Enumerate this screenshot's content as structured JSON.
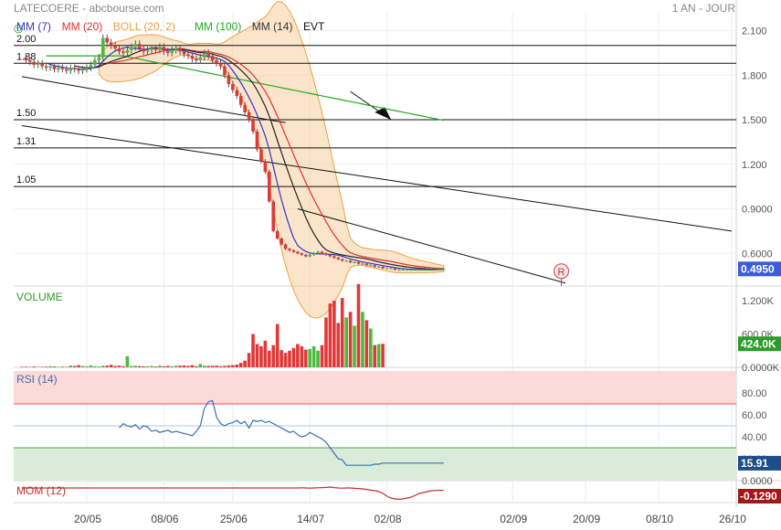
{
  "header": {
    "title": "LATECOERE - abcbourse.com",
    "period": "1 AN - JOUR"
  },
  "legend": [
    {
      "label": "MM (7)",
      "color": "#3333cc"
    },
    {
      "label": "MM (20)",
      "color": "#e03030"
    },
    {
      "label": "BOLL (20, 2)",
      "color": "#f0a040"
    },
    {
      "label": "MM (100)",
      "color": "#22aa22"
    },
    {
      "label": "MM (14)",
      "color": "#333333"
    },
    {
      "label": "EVT",
      "color": "#111111"
    }
  ],
  "colors": {
    "up": "#4cba3c",
    "down": "#e03838",
    "ma7": "#3333cc",
    "ma20": "#e03030",
    "ma100": "#22aa22",
    "ma14": "#222222",
    "boll": "#f7c58a",
    "rsi": "#3a6fb0",
    "mom": "#c03030"
  },
  "chart_data": [
    {
      "panel": "price",
      "type": "candlestick",
      "ylim": [
        0.38,
        2.22
      ],
      "y_ticks": [
        "2.100",
        "1.800",
        "1.500",
        "1.200",
        "0.9000",
        "0.6000"
      ],
      "y_tick_values": [
        2.1,
        1.8,
        1.5,
        1.2,
        0.9,
        0.6
      ],
      "x_ticks": [
        "20/05",
        "08/06",
        "25/06",
        "14/07",
        "02/08",
        "02/09",
        "20/09",
        "08/10",
        "26/10"
      ],
      "x_tick_days": [
        0,
        19,
        36,
        55,
        74,
        105,
        123,
        141,
        159
      ],
      "days": [
        -16,
        -15,
        -14,
        -13,
        -12,
        -11,
        -10,
        -9,
        -8,
        -7,
        -6,
        -5,
        -4,
        -3,
        -2,
        -1,
        0,
        1,
        2,
        3,
        4,
        5,
        6,
        7,
        8,
        9,
        10,
        11,
        12,
        13,
        14,
        15,
        16,
        17,
        18,
        19,
        20,
        21,
        22,
        23,
        24,
        25,
        26,
        27,
        28,
        29,
        30,
        31,
        32,
        33,
        34,
        35,
        36,
        37,
        38,
        39,
        40,
        41,
        42,
        43,
        44,
        45,
        46,
        47,
        48,
        49,
        50,
        51,
        52,
        53,
        54,
        55,
        56,
        57,
        58,
        59,
        60,
        61,
        62,
        63,
        64,
        65,
        66,
        67,
        68,
        69,
        70,
        71,
        72,
        73,
        74,
        75,
        76,
        77,
        78,
        79,
        80,
        81,
        82,
        83,
        84,
        85,
        86,
        87,
        88
      ],
      "close": [
        1.92,
        1.9,
        1.89,
        1.87,
        1.88,
        1.86,
        1.85,
        1.86,
        1.84,
        1.85,
        1.84,
        1.83,
        1.85,
        1.84,
        1.83,
        1.84,
        1.85,
        1.87,
        1.9,
        1.92,
        2.05,
        2.02,
        2.0,
        1.98,
        1.96,
        1.95,
        1.97,
        1.99,
        2.01,
        1.98,
        1.96,
        1.97,
        1.98,
        1.97,
        1.99,
        1.96,
        1.95,
        1.97,
        1.98,
        1.96,
        1.94,
        1.93,
        1.91,
        1.9,
        1.92,
        1.95,
        1.93,
        1.9,
        1.88,
        1.86,
        1.8,
        1.74,
        1.7,
        1.66,
        1.6,
        1.55,
        1.5,
        1.42,
        1.3,
        1.22,
        1.15,
        0.95,
        0.75,
        0.7,
        0.66,
        0.63,
        0.62,
        0.61,
        0.6,
        0.59,
        0.58,
        0.59,
        0.6,
        0.61,
        0.6,
        0.59,
        0.58,
        0.57,
        0.56,
        0.55,
        0.55,
        0.54,
        0.54,
        0.53,
        0.53,
        0.52,
        0.52,
        0.51,
        0.51,
        0.5,
        0.5,
        0.5,
        0.49,
        0.49,
        0.49,
        0.49,
        0.49,
        0.49,
        0.49,
        0.49,
        0.49,
        0.49,
        0.49,
        0.495,
        0.495
      ],
      "last_value": "0.4950",
      "levels": [
        {
          "value": 2.0,
          "label": "2.00"
        },
        {
          "value": 1.88,
          "label": "1.88"
        },
        {
          "value": 1.5,
          "label": "1.50"
        },
        {
          "value": 1.31,
          "label": "1.31"
        },
        {
          "value": 1.05,
          "label": "1.05"
        }
      ],
      "event_marker": "R"
    },
    {
      "panel": "volume",
      "type": "bar",
      "title": "VOLUME",
      "y_ticks": [
        "1.200K",
        "600.0K",
        "0.0000K"
      ],
      "y_tick_values": [
        1200,
        600,
        0
      ],
      "values": [
        10,
        12,
        8,
        15,
        10,
        9,
        12,
        20,
        15,
        10,
        12,
        8,
        30,
        25,
        40,
        22,
        18,
        35,
        20,
        15,
        28,
        30,
        45,
        25,
        30,
        20,
        200,
        25,
        30,
        22,
        18,
        20,
        26,
        15,
        30,
        18,
        25,
        20,
        28,
        30,
        35,
        26,
        40,
        20,
        60,
        30,
        25,
        28,
        30,
        22,
        26,
        35,
        40,
        50,
        80,
        120,
        260,
        600,
        420,
        380,
        480,
        300,
        400,
        780,
        310,
        260,
        300,
        350,
        420,
        380,
        320,
        330,
        380,
        300,
        400,
        900,
        1150,
        1200,
        800,
        1250,
        900,
        1000,
        750,
        1500,
        1000,
        850,
        700,
        400,
        420,
        424
      ],
      "last_value": "424.0K"
    },
    {
      "panel": "rsi",
      "type": "line",
      "title": "RSI (14)",
      "y_ticks": [
        "80.00",
        "60.00",
        "40.00",
        "20.00",
        "0.0000"
      ],
      "y_tick_values": [
        80,
        60,
        40,
        20,
        0
      ],
      "values": [
        48,
        52,
        50,
        49,
        51,
        47,
        50,
        49,
        45,
        46,
        44,
        45,
        46,
        44,
        45,
        44,
        43,
        42,
        41,
        45,
        50,
        66,
        72,
        73,
        58,
        52,
        50,
        52,
        53,
        55,
        52,
        54,
        48,
        55,
        54,
        55,
        53,
        54,
        52,
        50,
        48,
        46,
        44,
        45,
        42,
        40,
        41,
        44,
        42,
        40,
        38,
        35,
        30,
        25,
        20,
        19,
        14,
        14,
        14,
        14,
        14,
        14,
        14,
        15,
        15,
        16,
        16,
        16,
        16,
        16,
        16,
        16,
        16,
        16,
        16,
        16,
        16,
        16,
        16,
        16,
        15.91
      ],
      "last_value": "15.91"
    },
    {
      "panel": "momentum",
      "type": "line",
      "title": "MOM (12)",
      "values": [
        0,
        0.01,
        0,
        -0.01,
        0,
        0.01,
        0.02,
        0.03,
        0.05,
        0.02,
        0,
        -0.01,
        0,
        0,
        -0.02,
        -0.03,
        -0.05,
        -0.08,
        -0.12,
        -0.15,
        -0.2,
        -0.3,
        -0.45,
        -0.55,
        -0.6,
        -0.62,
        -0.6,
        -0.55,
        -0.5,
        -0.4,
        -0.3,
        -0.25,
        -0.2,
        -0.15,
        -0.14,
        -0.13,
        -0.129
      ],
      "last_value": "-0.1290"
    }
  ]
}
